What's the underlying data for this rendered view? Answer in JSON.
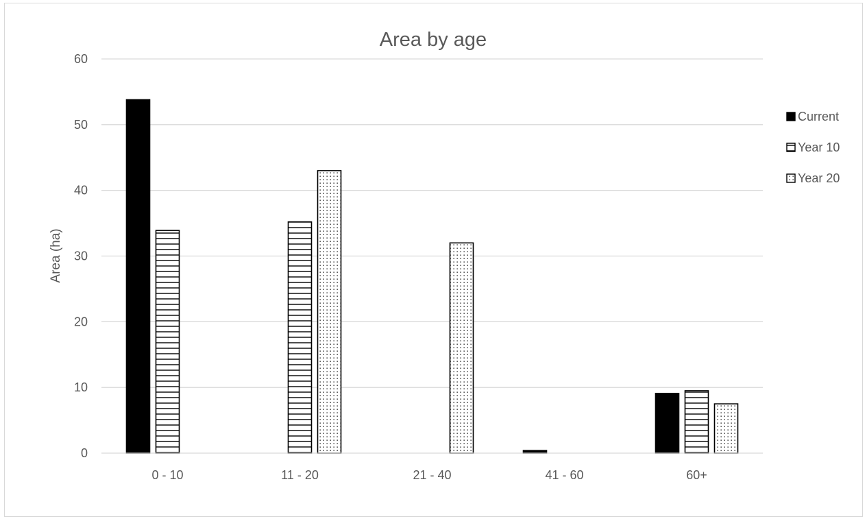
{
  "chart_data": {
    "type": "bar",
    "title": "Area by age",
    "xlabel": "",
    "ylabel": "Area (ha)",
    "ylim": [
      0,
      60
    ],
    "yticks": [
      0,
      10,
      20,
      30,
      40,
      50,
      60
    ],
    "grid": true,
    "legend_position": "right",
    "categories": [
      "0 - 10",
      "11 - 20",
      "21 - 40",
      "41 - 60",
      "60+"
    ],
    "series": [
      {
        "name": "Current",
        "values": [
          53.8,
          0,
          0,
          0.4,
          9.1
        ],
        "pattern": "solid",
        "color": "#000000"
      },
      {
        "name": "Year 10",
        "values": [
          33.9,
          35.2,
          0,
          0,
          9.5
        ],
        "pattern": "horizontal-lines",
        "color": "#000000"
      },
      {
        "name": "Year 20",
        "values": [
          0,
          43.0,
          32.0,
          0,
          7.5
        ],
        "pattern": "dots",
        "color": "#000000"
      }
    ]
  },
  "colors": {
    "axis_text": "#595959",
    "gridline": "#d9d9d9",
    "border": "#d9d9d9"
  }
}
